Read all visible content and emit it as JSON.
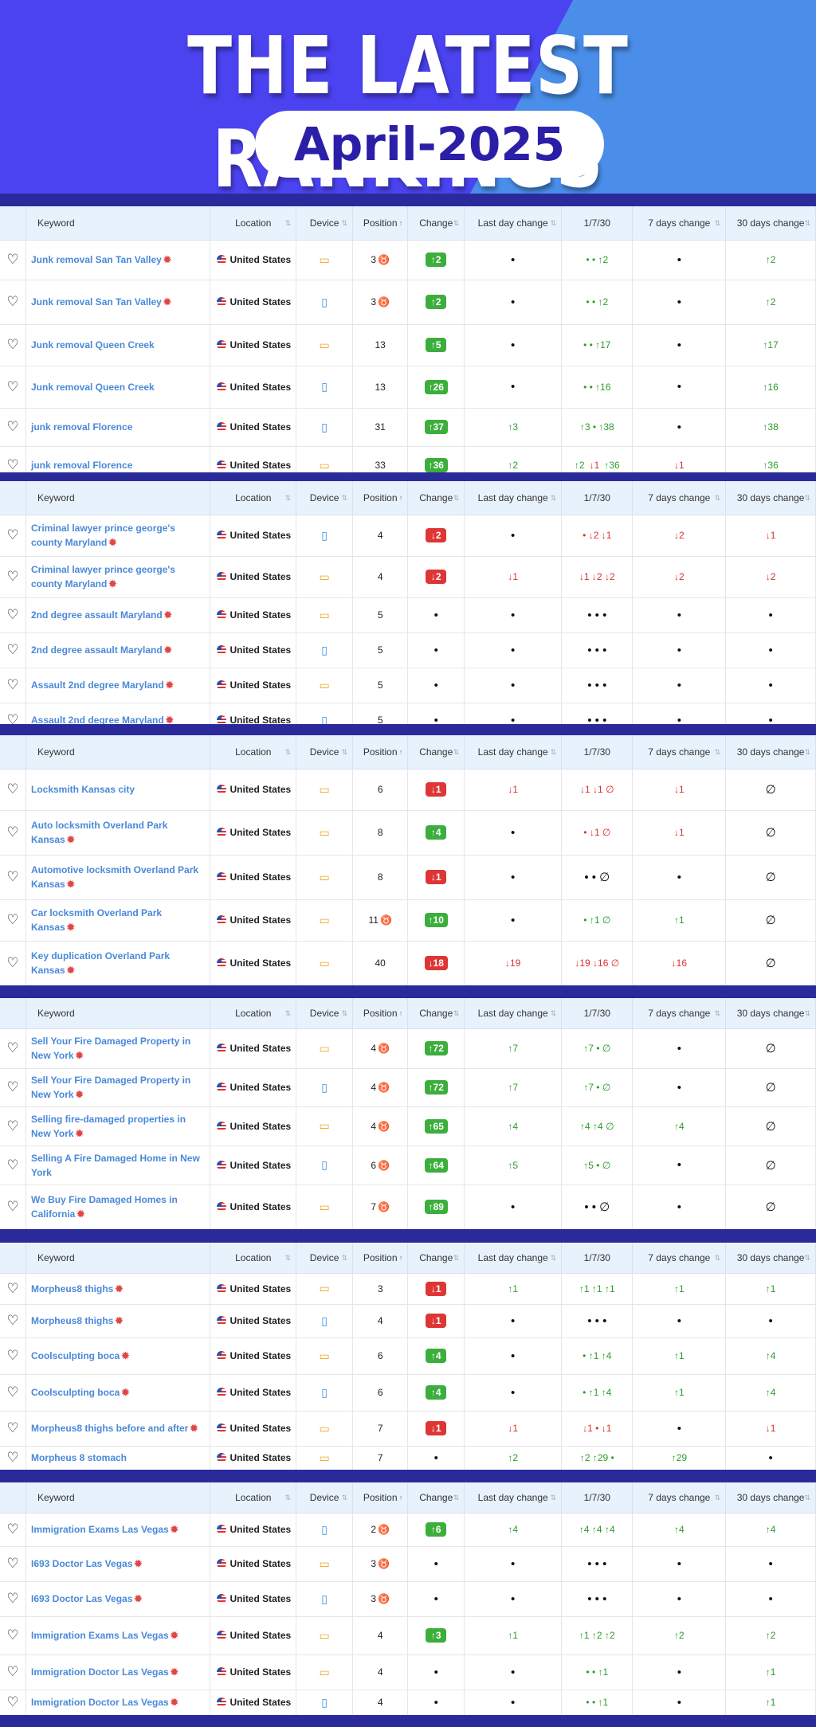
{
  "hero": {
    "title": "THE LATEST RANKINGS",
    "subtitle": "April-2025"
  },
  "columns": [
    "Keyword",
    "Location",
    "Device",
    "Position",
    "Change",
    "Last day change",
    "1/7/30",
    "7 days change",
    "30 days change"
  ],
  "colors": {
    "up": "#2c9c2c",
    "down": "#d93030",
    "keyword": "#4a89d8",
    "header_bg": "#e8f2fd"
  },
  "panels": [
    {
      "rows": [
        {
          "kw": "Junk removal San Tan Valley",
          "hot": true,
          "loc": "United States",
          "dev": "desktop",
          "pos": "3",
          "trophy": true,
          "chg": "↑2",
          "cdir": "up",
          "ld": "•",
          "ssn": "• • ↑2",
          "d7": "•",
          "d30": "↑2"
        },
        {
          "kw": "Junk removal San Tan Valley",
          "hot": true,
          "loc": "United States",
          "dev": "mobile",
          "pos": "3",
          "trophy": true,
          "chg": "↑2",
          "cdir": "up",
          "ld": "•",
          "ssn": "• • ↑2",
          "d7": "•",
          "d30": "↑2"
        },
        {
          "kw": "Junk removal Queen Creek",
          "hot": false,
          "loc": "United States",
          "dev": "desktop",
          "pos": "13",
          "trophy": false,
          "chg": "↑5",
          "cdir": "up",
          "ld": "•",
          "ssn": "• • ↑17",
          "d7": "•",
          "d30": "↑17"
        },
        {
          "kw": "Junk removal Queen Creek",
          "hot": false,
          "loc": "United States",
          "dev": "mobile",
          "pos": "13",
          "trophy": false,
          "chg": "↑26",
          "cdir": "up",
          "ld": "•",
          "ssn": "• • ↑16",
          "d7": "•",
          "d30": "↑16"
        },
        {
          "kw": "junk removal Florence",
          "hot": false,
          "loc": "United States",
          "dev": "mobile",
          "pos": "31",
          "trophy": false,
          "chg": "↑37",
          "cdir": "up",
          "ld": "↑3",
          "ssn": "↑3 • ↑38",
          "d7": "•",
          "d30": "↑38"
        },
        {
          "kw": "junk removal Florence",
          "hot": false,
          "loc": "United States",
          "dev": "desktop",
          "pos": "33",
          "trophy": false,
          "chg": "↑36",
          "cdir": "up",
          "ld": "↑2",
          "ssn": "↑2 ↓1 ↑36",
          "d7": "↓1",
          "d30": "↑36"
        }
      ]
    },
    {
      "rows": [
        {
          "kw": "Criminal lawyer prince george's county Maryland",
          "hot": true,
          "loc": "United States",
          "dev": "mobile",
          "pos": "4",
          "trophy": false,
          "chg": "↓2",
          "cdir": "dn",
          "ld": "•",
          "ssn": "• ↓2 ↓1",
          "d7": "↓2",
          "d30": "↓1"
        },
        {
          "kw": "Criminal lawyer prince george's county Maryland",
          "hot": true,
          "loc": "United States",
          "dev": "desktop",
          "pos": "4",
          "trophy": false,
          "chg": "↓2",
          "cdir": "dn",
          "ld": "↓1",
          "ssn": "↓1 ↓2 ↓2",
          "d7": "↓2",
          "d30": "↓2"
        },
        {
          "kw": "2nd degree assault Maryland",
          "hot": true,
          "loc": "United States",
          "dev": "desktop",
          "pos": "5",
          "trophy": false,
          "chg": "•",
          "cdir": "none",
          "ld": "•",
          "ssn": "• • •",
          "d7": "•",
          "d30": "•"
        },
        {
          "kw": "2nd degree assault Maryland",
          "hot": true,
          "loc": "United States",
          "dev": "mobile",
          "pos": "5",
          "trophy": false,
          "chg": "•",
          "cdir": "none",
          "ld": "•",
          "ssn": "• • •",
          "d7": "•",
          "d30": "•"
        },
        {
          "kw": "Assault 2nd degree Maryland",
          "hot": true,
          "loc": "United States",
          "dev": "desktop",
          "pos": "5",
          "trophy": false,
          "chg": "•",
          "cdir": "none",
          "ld": "•",
          "ssn": "• • •",
          "d7": "•",
          "d30": "•"
        },
        {
          "kw": "Assault 2nd degree Maryland",
          "hot": true,
          "loc": "United States",
          "dev": "mobile",
          "pos": "5",
          "trophy": false,
          "chg": "•",
          "cdir": "none",
          "ld": "•",
          "ssn": "• • •",
          "d7": "•",
          "d30": "•"
        }
      ]
    },
    {
      "rows": [
        {
          "kw": "Locksmith Kansas city",
          "hot": false,
          "loc": "United States",
          "dev": "desktop",
          "pos": "6",
          "trophy": false,
          "chg": "↓1",
          "cdir": "dn",
          "ld": "↓1",
          "ssn": "↓1 ↓1 ∅",
          "d7": "↓1",
          "d30": "∅"
        },
        {
          "kw": "Auto locksmith Overland Park Kansas",
          "hot": true,
          "loc": "United States",
          "dev": "desktop",
          "pos": "8",
          "trophy": false,
          "chg": "↑4",
          "cdir": "up",
          "ld": "•",
          "ssn": "• ↓1 ∅",
          "d7": "↓1",
          "d30": "∅"
        },
        {
          "kw": "Automotive locksmith Overland Park Kansas",
          "hot": true,
          "loc": "United States",
          "dev": "desktop",
          "pos": "8",
          "trophy": false,
          "chg": "↓1",
          "cdir": "dn",
          "ld": "•",
          "ssn": "• • ∅",
          "d7": "•",
          "d30": "∅"
        },
        {
          "kw": "Car locksmith Overland Park Kansas",
          "hot": true,
          "loc": "United States",
          "dev": "desktop",
          "pos": "11",
          "trophy": true,
          "chg": "↑10",
          "cdir": "up",
          "ld": "•",
          "ssn": "• ↑1 ∅",
          "d7": "↑1",
          "d30": "∅"
        },
        {
          "kw": "Key duplication Overland Park Kansas",
          "hot": true,
          "loc": "United States",
          "dev": "desktop",
          "pos": "40",
          "trophy": false,
          "chg": "↓18",
          "cdir": "dn",
          "ld": "↓19",
          "ssn": "↓19 ↓16 ∅",
          "d7": "↓16",
          "d30": "∅"
        }
      ]
    },
    {
      "rows": [
        {
          "kw": "Sell Your Fire Damaged Property in New York",
          "hot": true,
          "loc": "United States",
          "dev": "desktop",
          "pos": "4",
          "trophy": true,
          "chg": "↑72",
          "cdir": "up",
          "ld": "↑7",
          "ssn": "↑7 • ∅",
          "d7": "•",
          "d30": "∅"
        },
        {
          "kw": "Sell Your Fire Damaged Property in New York",
          "hot": true,
          "loc": "United States",
          "dev": "mobile",
          "pos": "4",
          "trophy": true,
          "chg": "↑72",
          "cdir": "up",
          "ld": "↑7",
          "ssn": "↑7 • ∅",
          "d7": "•",
          "d30": "∅"
        },
        {
          "kw": "Selling fire-damaged properties in New York",
          "hot": true,
          "loc": "United States",
          "dev": "desktop",
          "pos": "4",
          "trophy": true,
          "chg": "↑65",
          "cdir": "up",
          "ld": "↑4",
          "ssn": "↑4 ↑4 ∅",
          "d7": "↑4",
          "d30": "∅"
        },
        {
          "kw": "Selling A Fire Damaged Home in New York",
          "hot": false,
          "loc": "United States",
          "dev": "mobile",
          "pos": "6",
          "trophy": true,
          "chg": "↑64",
          "cdir": "up",
          "ld": "↑5",
          "ssn": "↑5 • ∅",
          "d7": "•",
          "d30": "∅"
        },
        {
          "kw": "We Buy Fire Damaged Homes in California",
          "hot": true,
          "loc": "United States",
          "dev": "desktop",
          "pos": "7",
          "trophy": true,
          "chg": "↑89",
          "cdir": "up",
          "ld": "•",
          "ssn": "• • ∅",
          "d7": "•",
          "d30": "∅"
        }
      ]
    },
    {
      "rows": [
        {
          "kw": "Morpheus8 thighs",
          "hot": true,
          "loc": "United States",
          "dev": "desktop",
          "pos": "3",
          "trophy": false,
          "chg": "↓1",
          "cdir": "dn",
          "ld": "↑1",
          "ssn": "↑1 ↑1 ↑1",
          "d7": "↑1",
          "d30": "↑1"
        },
        {
          "kw": "Morpheus8 thighs",
          "hot": true,
          "loc": "United States",
          "dev": "mobile",
          "pos": "4",
          "trophy": false,
          "chg": "↓1",
          "cdir": "dn",
          "ld": "•",
          "ssn": "• • •",
          "d7": "•",
          "d30": "•"
        },
        {
          "kw": "Coolsculpting boca",
          "hot": true,
          "loc": "United States",
          "dev": "desktop",
          "pos": "6",
          "trophy": false,
          "chg": "↑4",
          "cdir": "up",
          "ld": "•",
          "ssn": "• ↑1 ↑4",
          "d7": "↑1",
          "d30": "↑4"
        },
        {
          "kw": "Coolsculpting boca",
          "hot": true,
          "loc": "United States",
          "dev": "mobile",
          "pos": "6",
          "trophy": false,
          "chg": "↑4",
          "cdir": "up",
          "ld": "•",
          "ssn": "• ↑1 ↑4",
          "d7": "↑1",
          "d30": "↑4"
        },
        {
          "kw": "Morpheus8 thighs before and after",
          "hot": true,
          "loc": "United States",
          "dev": "desktop",
          "pos": "7",
          "trophy": false,
          "chg": "↓1",
          "cdir": "dn",
          "ld": "↓1",
          "ssn": "↓1 • ↓1",
          "d7": "•",
          "d30": "↓1"
        },
        {
          "kw": "Morpheus 8 stomach",
          "hot": false,
          "loc": "United States",
          "dev": "desktop",
          "pos": "7",
          "trophy": false,
          "chg": "•",
          "cdir": "none",
          "ld": "↑2",
          "ssn": "↑2 ↑29 •",
          "d7": "↑29",
          "d30": "•"
        }
      ]
    },
    {
      "rows": [
        {
          "kw": "Immigration Exams Las Vegas",
          "hot": true,
          "loc": "United States",
          "dev": "mobile",
          "pos": "2",
          "trophy": true,
          "chg": "↑6",
          "cdir": "up",
          "ld": "↑4",
          "ssn": "↑4 ↑4 ↑4",
          "d7": "↑4",
          "d30": "↑4"
        },
        {
          "kw": "I693 Doctor Las Vegas",
          "hot": true,
          "loc": "United States",
          "dev": "desktop",
          "pos": "3",
          "trophy": true,
          "chg": "•",
          "cdir": "none",
          "ld": "•",
          "ssn": "• • •",
          "d7": "•",
          "d30": "•"
        },
        {
          "kw": "I693 Doctor Las Vegas",
          "hot": true,
          "loc": "United States",
          "dev": "mobile",
          "pos": "3",
          "trophy": true,
          "chg": "•",
          "cdir": "none",
          "ld": "•",
          "ssn": "• • •",
          "d7": "•",
          "d30": "•"
        },
        {
          "kw": "Immigration Exams Las Vegas",
          "hot": true,
          "loc": "United States",
          "dev": "desktop",
          "pos": "4",
          "trophy": false,
          "chg": "↑3",
          "cdir": "up",
          "ld": "↑1",
          "ssn": "↑1 ↑2 ↑2",
          "d7": "↑2",
          "d30": "↑2"
        },
        {
          "kw": "Immigration Doctor Las Vegas",
          "hot": true,
          "loc": "United States",
          "dev": "desktop",
          "pos": "4",
          "trophy": false,
          "chg": "•",
          "cdir": "none",
          "ld": "•",
          "ssn": "• • ↑1",
          "d7": "•",
          "d30": "↑1"
        },
        {
          "kw": "Immigration Doctor Las Vegas",
          "hot": true,
          "loc": "United States",
          "dev": "mobile",
          "pos": "4",
          "trophy": false,
          "chg": "•",
          "cdir": "none",
          "ld": "•",
          "ssn": "• • ↑1",
          "d7": "•",
          "d30": "↑1"
        }
      ]
    }
  ]
}
